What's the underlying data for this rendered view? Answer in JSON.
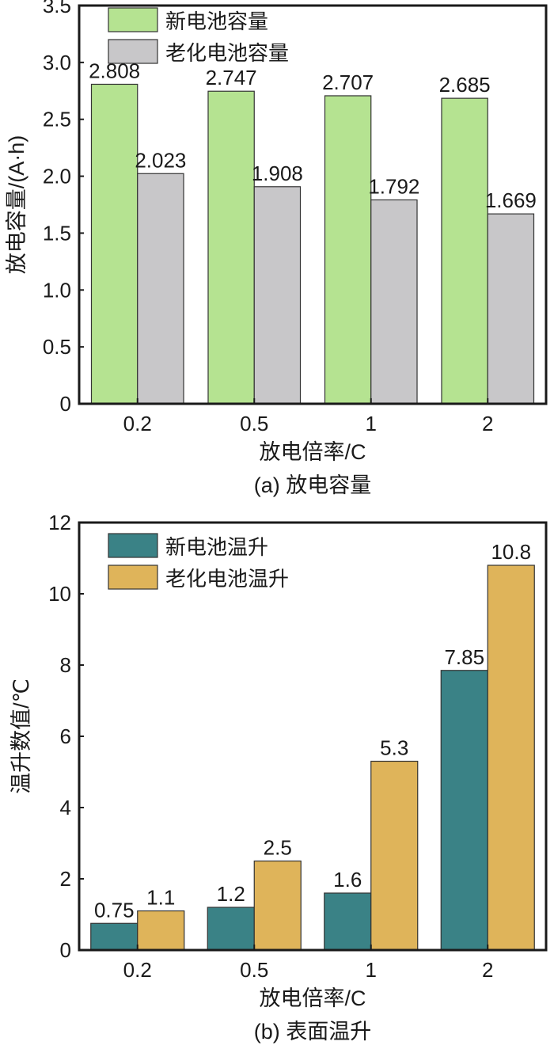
{
  "chart_data": [
    {
      "type": "bar",
      "caption": "(a) 放电容量",
      "xlabel": "放电倍率/C",
      "ylabel": "放电容量/(A·h)",
      "categories": [
        "0.2",
        "0.5",
        "1",
        "2"
      ],
      "ylim": [
        0,
        3.5
      ],
      "yticks": [
        "0",
        "0.5",
        "1.0",
        "1.5",
        "2.0",
        "2.5",
        "3.0",
        "3.5"
      ],
      "legend_position": "top-left",
      "series": [
        {
          "name": "新电池容量",
          "color": "#b5e391",
          "values": [
            2.808,
            2.747,
            2.707,
            2.685
          ],
          "labels": [
            "2.808",
            "2.747",
            "2.707",
            "2.685"
          ]
        },
        {
          "name": "老化电池容量",
          "color": "#c8c7c9",
          "values": [
            2.023,
            1.908,
            1.792,
            1.669
          ],
          "labels": [
            "2.023",
            "1.908",
            "1.792",
            "1.669"
          ]
        }
      ]
    },
    {
      "type": "bar",
      "caption": "(b) 表面温升",
      "xlabel": "放电倍率/C",
      "ylabel": "温升数值/℃",
      "categories": [
        "0.2",
        "0.5",
        "1",
        "2"
      ],
      "ylim": [
        0,
        12
      ],
      "yticks": [
        "0",
        "2",
        "4",
        "6",
        "8",
        "10",
        "12"
      ],
      "legend_position": "top-left",
      "series": [
        {
          "name": "新电池温升",
          "color": "#3a8286",
          "values": [
            0.75,
            1.2,
            1.6,
            7.85
          ],
          "labels": [
            "0.75",
            "1.2",
            "1.6",
            "7.85"
          ]
        },
        {
          "name": "老化电池温升",
          "color": "#dfb45a",
          "values": [
            1.1,
            2.5,
            5.3,
            10.8
          ],
          "labels": [
            "1.1",
            "2.5",
            "5.3",
            "10.8"
          ]
        }
      ]
    }
  ]
}
